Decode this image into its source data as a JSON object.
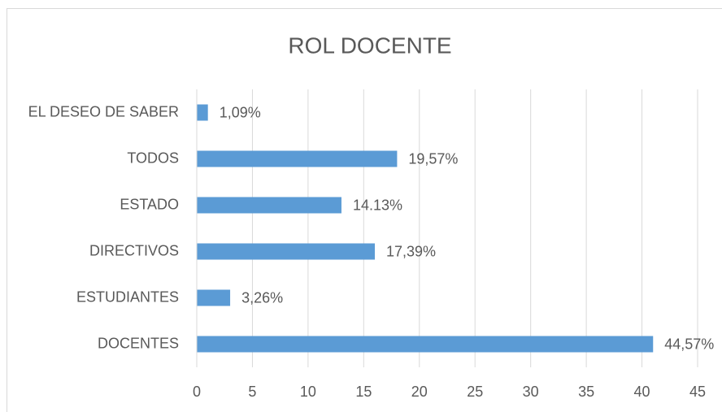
{
  "chart_data": {
    "type": "bar",
    "orientation": "horizontal",
    "title": "ROL DOCENTE",
    "categories": [
      "EL DESEO DE SABER",
      "TODOS",
      "ESTADO",
      "DIRECTIVOS",
      "ESTUDIANTES",
      "DOCENTES"
    ],
    "values": [
      1,
      18,
      13,
      16,
      3,
      41
    ],
    "value_labels": [
      "1,09%",
      "19,57%",
      "14.13%",
      "17,39%",
      "3,26%",
      "44,57%"
    ],
    "color": "#5b9bd5",
    "xlim": [
      0,
      45
    ],
    "xticks": [
      0,
      5,
      10,
      15,
      20,
      25,
      30,
      35,
      40,
      45
    ],
    "grid": true
  }
}
